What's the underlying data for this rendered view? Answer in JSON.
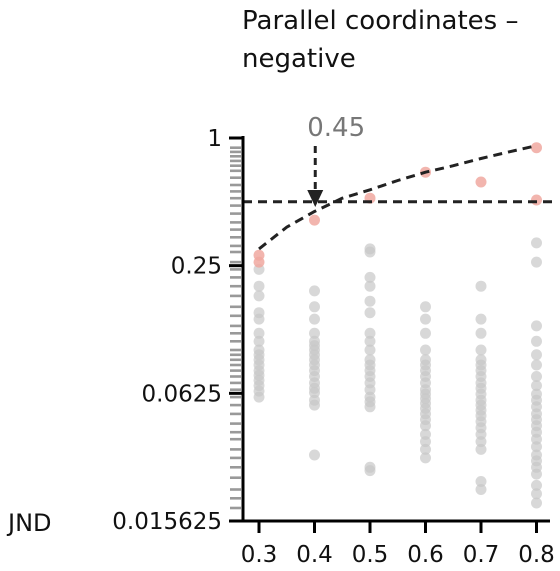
{
  "chart_data": {
    "type": "scatter",
    "title": [
      "Parallel coordinates –",
      "negative"
    ],
    "xlabel": "",
    "ylabel": "JND",
    "x_ticks": [
      "0.3",
      "0.4",
      "0.5",
      "0.6",
      "0.7",
      "0.8"
    ],
    "y_scale": "log2",
    "y_ticks": [
      "1",
      "0.25",
      "0.0625",
      "0.015625"
    ],
    "ylim": [
      0.015625,
      1
    ],
    "colors": {
      "gray_points": "#c8c8c8",
      "red_points": "#f0a8a0",
      "rug": "#999999",
      "fit_line": "#222222",
      "annotation": "#777777"
    },
    "annotation": {
      "label": "0.45",
      "x": 0.45
    },
    "threshold_line_y": 0.5,
    "fit_curve": [
      {
        "x": 0.3,
        "y": 0.3
      },
      {
        "x": 0.35,
        "y": 0.38
      },
      {
        "x": 0.4,
        "y": 0.45
      },
      {
        "x": 0.45,
        "y": 0.52
      },
      {
        "x": 0.5,
        "y": 0.57
      },
      {
        "x": 0.55,
        "y": 0.63
      },
      {
        "x": 0.6,
        "y": 0.69
      },
      {
        "x": 0.65,
        "y": 0.74
      },
      {
        "x": 0.7,
        "y": 0.8
      },
      {
        "x": 0.75,
        "y": 0.86
      },
      {
        "x": 0.8,
        "y": 0.92
      }
    ],
    "red_points": [
      {
        "x": 0.3,
        "y": 0.26
      },
      {
        "x": 0.3,
        "y": 0.28
      },
      {
        "x": 0.4,
        "y": 0.41
      },
      {
        "x": 0.5,
        "y": 0.52
      },
      {
        "x": 0.6,
        "y": 0.69
      },
      {
        "x": 0.7,
        "y": 0.62
      },
      {
        "x": 0.8,
        "y": 0.51
      },
      {
        "x": 0.8,
        "y": 0.9
      }
    ],
    "gray_points": {
      "0.3": [
        0.24,
        0.2,
        0.18,
        0.15,
        0.14,
        0.12,
        0.11,
        0.1,
        0.095,
        0.09,
        0.085,
        0.08,
        0.076,
        0.072,
        0.068,
        0.064,
        0.06
      ],
      "0.4": [
        0.19,
        0.16,
        0.14,
        0.12,
        0.11,
        0.105,
        0.1,
        0.095,
        0.09,
        0.085,
        0.08,
        0.075,
        0.07,
        0.066,
        0.063,
        0.058,
        0.055,
        0.032
      ],
      "0.5": [
        0.3,
        0.29,
        0.22,
        0.2,
        0.17,
        0.15,
        0.12,
        0.11,
        0.1,
        0.09,
        0.085,
        0.08,
        0.075,
        0.07,
        0.065,
        0.06,
        0.057,
        0.054,
        0.028,
        0.027
      ],
      "0.6": [
        0.16,
        0.14,
        0.12,
        0.1,
        0.09,
        0.085,
        0.08,
        0.075,
        0.07,
        0.065,
        0.062,
        0.059,
        0.056,
        0.053,
        0.05,
        0.047,
        0.044,
        0.04,
        0.037,
        0.034,
        0.031
      ],
      "0.7": [
        0.2,
        0.14,
        0.12,
        0.1,
        0.09,
        0.085,
        0.08,
        0.075,
        0.07,
        0.066,
        0.062,
        0.058,
        0.055,
        0.052,
        0.049,
        0.046,
        0.043,
        0.04,
        0.037,
        0.034,
        0.024,
        0.022
      ],
      "0.8": [
        0.32,
        0.26,
        0.13,
        0.11,
        0.095,
        0.085,
        0.075,
        0.068,
        0.062,
        0.058,
        0.054,
        0.05,
        0.047,
        0.044,
        0.041,
        0.038,
        0.035,
        0.032,
        0.03,
        0.028,
        0.026,
        0.023,
        0.021,
        0.019
      ]
    },
    "rug_values": [
      0.9,
      0.86,
      0.82,
      0.78,
      0.74,
      0.7,
      0.65,
      0.6,
      0.56,
      0.52,
      0.48,
      0.44,
      0.4,
      0.37,
      0.34,
      0.31,
      0.29,
      0.26,
      0.24,
      0.22,
      0.2,
      0.18,
      0.16,
      0.145,
      0.13,
      0.12,
      0.11,
      0.1,
      0.095,
      0.09,
      0.085,
      0.08,
      0.075,
      0.07,
      0.065,
      0.06,
      0.055,
      0.05,
      0.045,
      0.041,
      0.038,
      0.034,
      0.031,
      0.028,
      0.025,
      0.022,
      0.02,
      0.018
    ]
  }
}
